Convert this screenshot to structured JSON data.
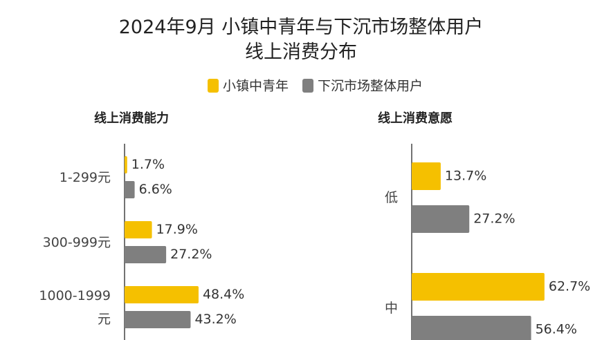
{
  "title": "2024年9月 小镇中青年与下沉市场整体用户\n线上消费分布",
  "chart_data": [
    {
      "type": "bar",
      "orientation": "horizontal",
      "title": "线上消费能力",
      "categories": [
        "1-299元",
        "300-999元",
        "1000-1999元"
      ],
      "xlim": [
        0,
        100
      ],
      "series": [
        {
          "name": "小镇中青年",
          "color": "#f5c000",
          "values": [
            1.7,
            17.9,
            48.4
          ],
          "value_labels": [
            "1.7%",
            "17.9%",
            "48.4%"
          ]
        },
        {
          "name": "下沉市场整体用户",
          "color": "#7f7f7f",
          "values": [
            6.6,
            27.2,
            43.2
          ],
          "value_labels": [
            "6.6%",
            "27.2%",
            "43.2%"
          ]
        }
      ]
    },
    {
      "type": "bar",
      "orientation": "horizontal",
      "title": "线上消费意愿",
      "categories": [
        "低",
        "中"
      ],
      "xlim": [
        0,
        100
      ],
      "series": [
        {
          "name": "小镇中青年",
          "color": "#f5c000",
          "values": [
            13.7,
            62.7
          ],
          "value_labels": [
            "13.7%",
            "62.7%"
          ]
        },
        {
          "name": "下沉市场整体用户",
          "color": "#7f7f7f",
          "values": [
            27.2,
            56.4
          ],
          "value_labels": [
            "27.2%",
            "56.4%"
          ]
        }
      ]
    }
  ]
}
